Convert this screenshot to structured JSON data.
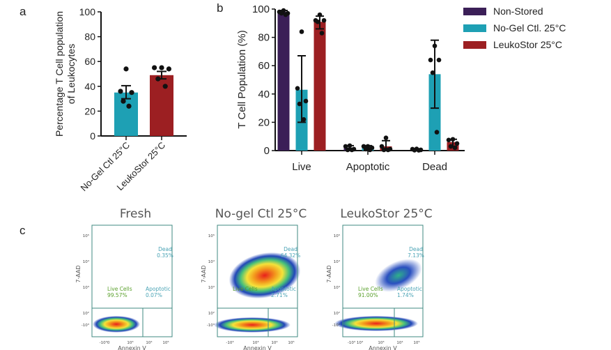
{
  "panels": {
    "a": "a",
    "b": "b",
    "c": "c"
  },
  "colors": {
    "non_stored": "#3b1f57",
    "no_gel": "#1ea0b4",
    "leukostor": "#9c1f22",
    "gate": "#3f8a80",
    "dead_text": "#4aa3b5",
    "live_text": "#5aa02c"
  },
  "chart_data": [
    {
      "type": "bar",
      "panel": "a",
      "ylabel": "Percentage T Cell population of Leukocytes",
      "ylabel_lines": [
        "Percentage T Cell population",
        "of Leukocytes"
      ],
      "ylim": [
        0,
        100
      ],
      "yticks": [
        0,
        20,
        40,
        60,
        80,
        100
      ],
      "categories": [
        "No-Gel Ctl 25°C",
        "LeukoStor   25°C"
      ],
      "values": [
        35,
        49
      ],
      "error": [
        [
          30,
          40.5
        ],
        [
          46,
          52
        ]
      ],
      "points": [
        [
          54,
          36,
          35,
          28,
          24
        ],
        [
          55,
          55,
          54,
          46,
          40
        ]
      ],
      "bar_colors": [
        "#1ea0b4",
        "#9c1f22"
      ]
    },
    {
      "type": "bar",
      "panel": "b",
      "ylabel": "T Cell Population (%)",
      "ylim": [
        0,
        100
      ],
      "yticks": [
        0,
        20,
        40,
        60,
        80,
        100
      ],
      "categories": [
        "Live",
        "Apoptotic",
        "Dead"
      ],
      "legend_position": "top-right",
      "series": [
        {
          "name": "Non-Stored",
          "color": "#3b1f57",
          "values": [
            98,
            2,
            0.7
          ],
          "error": [
            [
              96.5,
              99
            ],
            [
              0.5,
              3.5
            ],
            [
              0.2,
              1.2
            ]
          ],
          "points": [
            [
              99,
              98,
              97,
              97,
              96
            ],
            [
              3.5,
              3,
              1,
              0.5,
              0.5
            ],
            [
              1.2,
              1,
              0.5,
              0.3,
              0.2
            ]
          ]
        },
        {
          "name": "No-Gel Ctl. 25°C",
          "color": "#1ea0b4",
          "values": [
            43,
            2,
            54
          ],
          "error": [
            [
              20,
              67
            ],
            [
              0.5,
              3.5
            ],
            [
              30,
              78
            ]
          ],
          "points": [
            [
              84,
              44,
              35,
              33,
              22
            ],
            [
              3,
              3,
              2,
              1,
              0.5
            ],
            [
              74,
              64,
              64,
              55,
              13
            ]
          ]
        },
        {
          "name": "LeukoStor   25°C",
          "color": "#9c1f22",
          "values": [
            91,
            3,
            6
          ],
          "error": [
            [
              86,
              95
            ],
            [
              0,
              7
            ],
            [
              3,
              8
            ]
          ],
          "points": [
            [
              96,
              92,
              92,
              91,
              83
            ],
            [
              9,
              3,
              1,
              0.5,
              0.5
            ],
            [
              8,
              7.5,
              5,
              3,
              2
            ]
          ]
        }
      ]
    },
    {
      "type": "scatter",
      "panel": "c",
      "xlabel": "Annexin V",
      "ylabel": "7-AAD",
      "plots": [
        {
          "title": "Fresh",
          "live": "Live Cells",
          "live_pct": "99.57%",
          "apoptotic": "Apoptotic",
          "apoptotic_pct": "0.07%",
          "dead": "Dead",
          "dead_pct": "0.35%",
          "xticks": [
            "-10³0",
            "10³",
            "10⁴",
            "10⁵"
          ]
        },
        {
          "title": "No-gel Ctl 25°C",
          "live": "Live Cells",
          "live_pct": "",
          "apoptotic": "Apoptotic",
          "apoptotic_pct": "2.71%",
          "dead": "Dead",
          "dead_pct": "64.32%",
          "xticks": [
            "-10³",
            "10³",
            "10⁴",
            "10⁵"
          ]
        },
        {
          "title": "LeukoStor   25°C",
          "live": "Live Cells",
          "live_pct": "91.00%",
          "apoptotic": "Apoptotic",
          "apoptotic_pct": "1.74%",
          "dead": "Dead",
          "dead_pct": "7.13%",
          "xticks": [
            "-10³ 10³",
            "10³",
            "10⁴",
            "10⁵"
          ]
        }
      ],
      "yticks": [
        "10⁵",
        "10⁴",
        "10³",
        "10²",
        "-10³"
      ]
    }
  ]
}
